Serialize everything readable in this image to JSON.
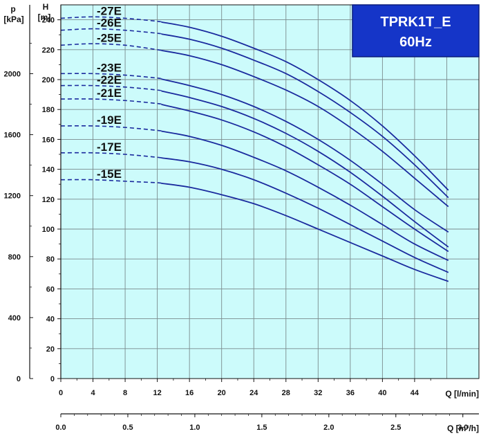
{
  "chart_data": {
    "type": "line",
    "title": "TPRK1T_E",
    "subtitle": "60Hz",
    "xlabel": "Q [l/min]",
    "x2label": "Q [m³/h]",
    "ylabel": "H\n[m]",
    "y2label": "p\n[kPa]",
    "xlim": [
      0,
      52
    ],
    "ylim": [
      0,
      250
    ],
    "x_ticks": [
      0,
      4,
      8,
      12,
      16,
      20,
      24,
      28,
      32,
      36,
      40,
      44
    ],
    "y_ticks": [
      0,
      20,
      40,
      60,
      80,
      100,
      120,
      140,
      160,
      180,
      200,
      220,
      240
    ],
    "x2_ticks": [
      0.0,
      0.5,
      1.0,
      1.5,
      2.0,
      2.5,
      3.0
    ],
    "x2_tick_labels": [
      "0.0",
      "0.5",
      "1.0",
      "1.5",
      "2.0",
      "2.5",
      "3.0"
    ],
    "y2_ticks": [
      0,
      400,
      800,
      1200,
      1600,
      2000
    ],
    "grid": true,
    "dashed_until_x": 12.5,
    "series": [
      {
        "name": "-27E",
        "label_x": 4.3,
        "x": [
          0,
          4,
          8,
          12,
          16,
          20,
          24,
          28,
          32,
          36,
          40,
          44,
          48.2
        ],
        "y": [
          241,
          242,
          241,
          239,
          235,
          229,
          221,
          212,
          200,
          186,
          169,
          149,
          126
        ]
      },
      {
        "name": "-26E",
        "label_x": 4.3,
        "x": [
          0,
          4,
          8,
          12,
          16,
          20,
          24,
          28,
          32,
          36,
          40,
          44,
          48.2
        ],
        "y": [
          233,
          234,
          233,
          231,
          227,
          221,
          213,
          204,
          192,
          178,
          162,
          143,
          121
        ]
      },
      {
        "name": "-25E",
        "label_x": 4.3,
        "x": [
          0,
          4,
          8,
          12,
          16,
          20,
          24,
          28,
          32,
          36,
          40,
          44,
          48.2
        ],
        "y": [
          223,
          224,
          223,
          220,
          216,
          210,
          202,
          193,
          182,
          168,
          152,
          134,
          115
        ]
      },
      {
        "name": "-23E",
        "label_x": 4.3,
        "x": [
          0,
          4,
          8,
          12,
          16,
          20,
          24,
          28,
          32,
          36,
          40,
          44,
          48.2
        ],
        "y": [
          204,
          204,
          203,
          201,
          196,
          190,
          182,
          172,
          160,
          146,
          130,
          113,
          98
        ]
      },
      {
        "name": "-22E",
        "label_x": 4.3,
        "x": [
          0,
          4,
          8,
          12,
          16,
          20,
          24,
          28,
          32,
          36,
          40,
          44,
          48.2
        ],
        "y": [
          196,
          196,
          195,
          193,
          188,
          182,
          174,
          164,
          152,
          138,
          122,
          105,
          88
        ]
      },
      {
        "name": "-21E",
        "label_x": 4.3,
        "x": [
          0,
          4,
          8,
          12,
          16,
          20,
          24,
          28,
          32,
          36,
          40,
          44,
          48.2
        ],
        "y": [
          187,
          187,
          186,
          184,
          179,
          173,
          165,
          155,
          143,
          130,
          115,
          100,
          85
        ]
      },
      {
        "name": "-19E",
        "label_x": 4.3,
        "x": [
          0,
          4,
          8,
          12,
          16,
          20,
          24,
          28,
          32,
          36,
          40,
          44,
          48.2
        ],
        "y": [
          169,
          169,
          168,
          166,
          162,
          156,
          148,
          139,
          128,
          116,
          103,
          90,
          79
        ]
      },
      {
        "name": "-17E",
        "label_x": 4.3,
        "x": [
          0,
          4,
          8,
          12,
          16,
          20,
          24,
          28,
          32,
          36,
          40,
          44,
          48.2
        ],
        "y": [
          151,
          151,
          150,
          148,
          145,
          140,
          133,
          124,
          114,
          103,
          92,
          81,
          71
        ]
      },
      {
        "name": "-15E",
        "label_x": 4.3,
        "x": [
          0,
          4,
          8,
          12,
          16,
          20,
          24,
          28,
          32,
          36,
          40,
          44,
          48.2
        ],
        "y": [
          133,
          133,
          132,
          131,
          128,
          123,
          117,
          109,
          100,
          91,
          82,
          73,
          65
        ]
      }
    ]
  },
  "colors": {
    "plot_background": "#ccfbfb",
    "grid": "#7a8a8c",
    "curve": "#1a2a9e",
    "title_box": "#1535c8",
    "axis": "#111111"
  }
}
